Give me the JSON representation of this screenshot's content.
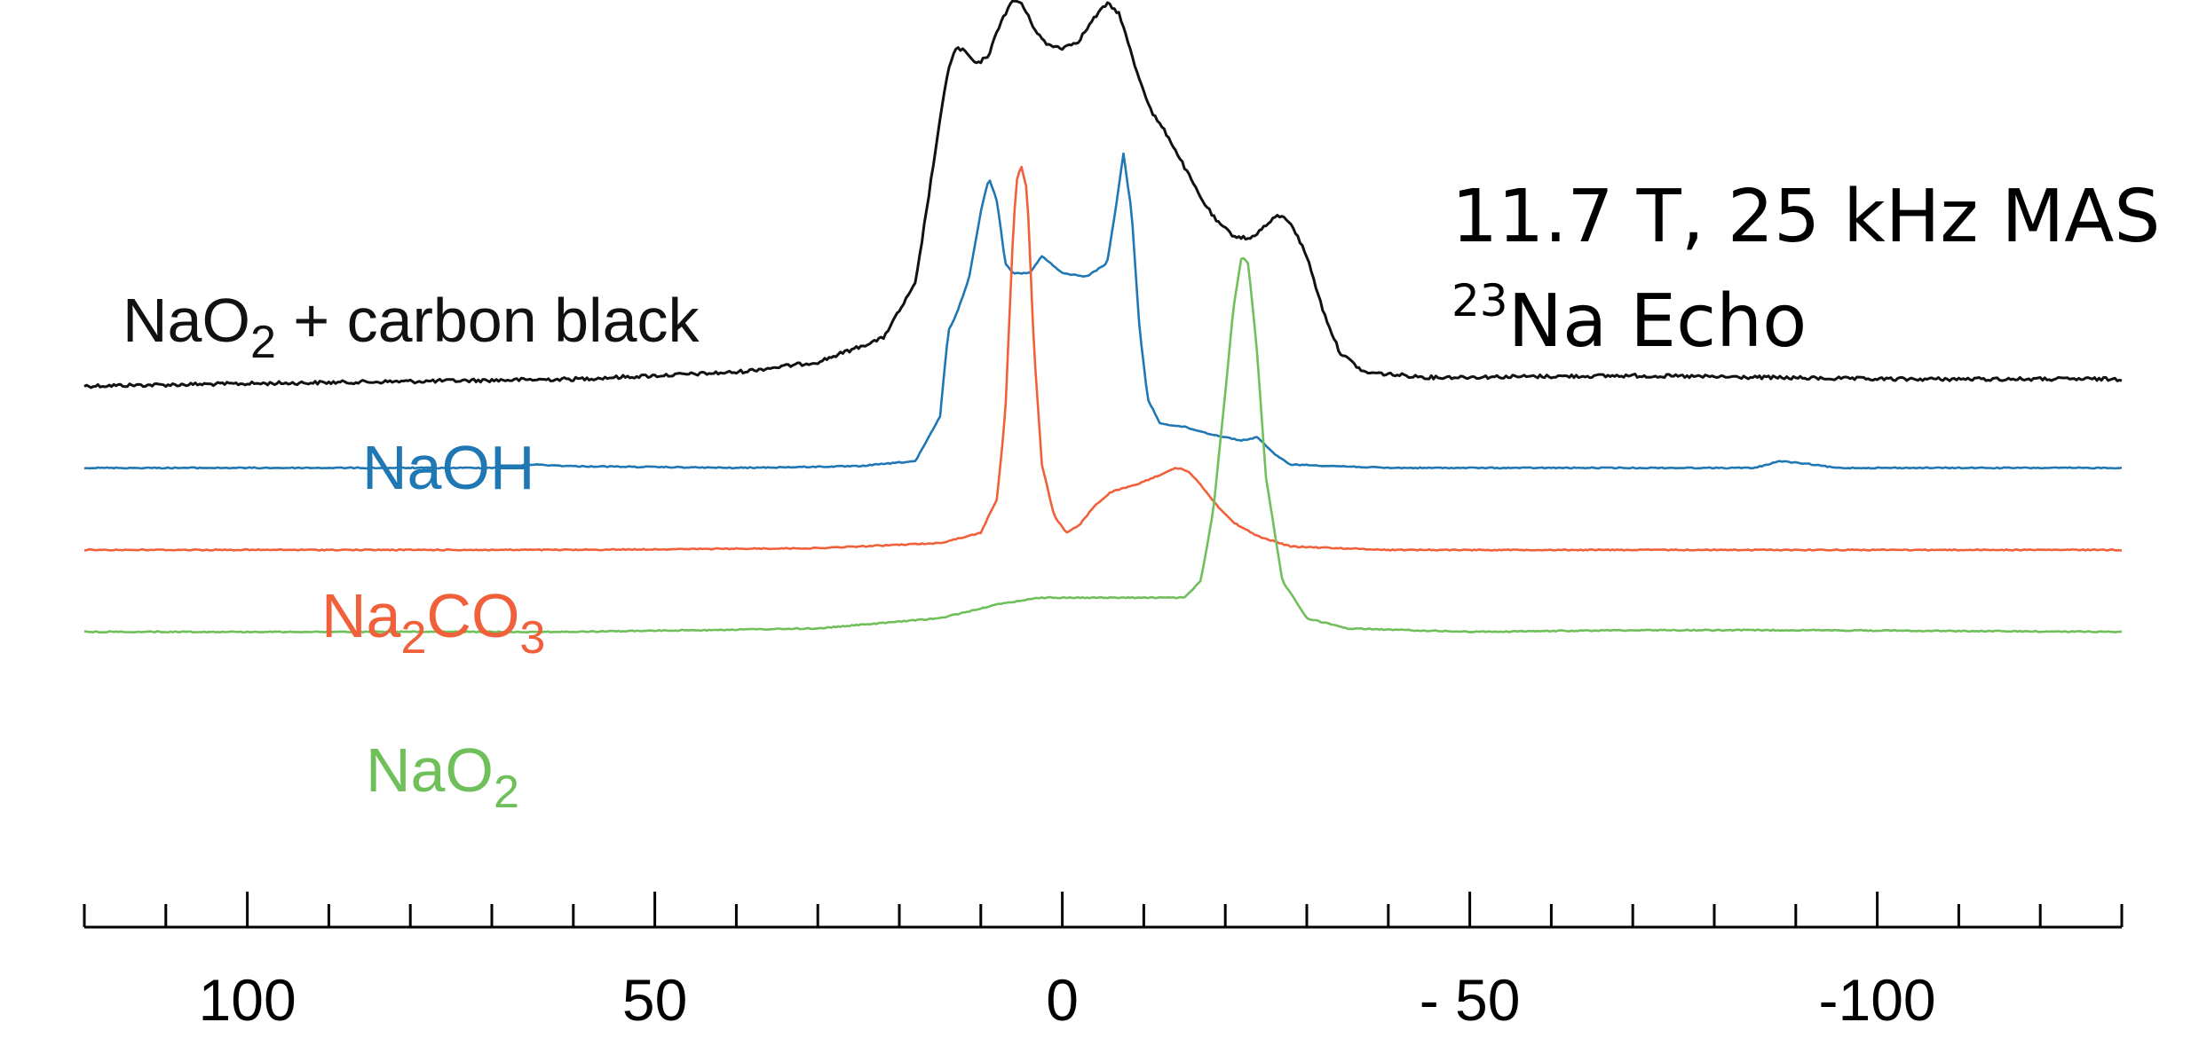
{
  "chart_data": {
    "type": "line",
    "xlim": [
      120,
      -130
    ],
    "x_axis_reversed": true,
    "tick_labels": [
      {
        "value": 100,
        "label": "100"
      },
      {
        "value": 50,
        "label": "50"
      },
      {
        "value": 0,
        "label": "0"
      },
      {
        "value": -50,
        "label": "- 50"
      },
      {
        "value": -100,
        "label": "-100"
      }
    ],
    "minor_tick_step": 10,
    "grid": false,
    "annotations": {
      "conditions": "11.7 T, 25 kHz MAS",
      "isotope_sup": "23",
      "isotope_text": "Na Echo"
    },
    "series": [
      {
        "name_parts": [
          "NaO",
          "2",
          " + carbon black"
        ],
        "color": "#111111",
        "baseline_level": 0.0,
        "points": [
          [
            120,
            0.0
          ],
          [
            90,
            0.01
          ],
          [
            60,
            0.02
          ],
          [
            40,
            0.04
          ],
          [
            30,
            0.07
          ],
          [
            22,
            0.14
          ],
          [
            18,
            0.3
          ],
          [
            15.5,
            0.7
          ],
          [
            14,
            0.93
          ],
          [
            13,
            0.99
          ],
          [
            12,
            0.98
          ],
          [
            10.5,
            0.94
          ],
          [
            9,
            0.97
          ],
          [
            7.5,
            1.07
          ],
          [
            6,
            1.13
          ],
          [
            5,
            1.12
          ],
          [
            3.5,
            1.05
          ],
          [
            2,
            1.0
          ],
          [
            0,
            0.99
          ],
          [
            -2,
            1.01
          ],
          [
            -4,
            1.08
          ],
          [
            -5.5,
            1.12
          ],
          [
            -7,
            1.09
          ],
          [
            -9,
            0.93
          ],
          [
            -11,
            0.8
          ],
          [
            -13,
            0.73
          ],
          [
            -15,
            0.64
          ],
          [
            -17,
            0.55
          ],
          [
            -19,
            0.48
          ],
          [
            -21,
            0.44
          ],
          [
            -23,
            0.43
          ],
          [
            -25,
            0.47
          ],
          [
            -26.5,
            0.5
          ],
          [
            -28,
            0.48
          ],
          [
            -30,
            0.38
          ],
          [
            -32,
            0.22
          ],
          [
            -34,
            0.1
          ],
          [
            -37,
            0.04
          ],
          [
            -45,
            0.025
          ],
          [
            -70,
            0.03
          ],
          [
            -100,
            0.02
          ],
          [
            -130,
            0.02
          ]
        ]
      },
      {
        "name": "NaOH",
        "color": "#1f77b4",
        "baseline_level": -0.55,
        "points": [
          [
            120,
            0.0
          ],
          [
            70,
            0.0
          ],
          [
            65,
            0.01
          ],
          [
            60,
            0.005
          ],
          [
            40,
            0.0
          ],
          [
            25,
            0.005
          ],
          [
            18,
            0.02
          ],
          [
            15,
            0.15
          ],
          [
            14,
            0.4
          ],
          [
            13,
            0.45
          ],
          [
            11.5,
            0.55
          ],
          [
            10,
            0.75
          ],
          [
            9,
            0.85
          ],
          [
            8,
            0.78
          ],
          [
            7,
            0.6
          ],
          [
            6,
            0.57
          ],
          [
            4,
            0.57
          ],
          [
            2.5,
            0.62
          ],
          [
            1.5,
            0.6
          ],
          [
            0,
            0.57
          ],
          [
            -3,
            0.56
          ],
          [
            -5.5,
            0.6
          ],
          [
            -6.5,
            0.75
          ],
          [
            -7.5,
            0.92
          ],
          [
            -8.5,
            0.75
          ],
          [
            -9.5,
            0.4
          ],
          [
            -10.5,
            0.2
          ],
          [
            -12,
            0.13
          ],
          [
            -15,
            0.12
          ],
          [
            -18,
            0.1
          ],
          [
            -22,
            0.08
          ],
          [
            -24,
            0.09
          ],
          [
            -26,
            0.04
          ],
          [
            -28,
            0.01
          ],
          [
            -40,
            0.0
          ],
          [
            -85,
            0.0
          ],
          [
            -88,
            0.02
          ],
          [
            -92,
            0.01
          ],
          [
            -95,
            0.0
          ],
          [
            -130,
            0.0
          ]
        ]
      },
      {
        "name_parts": [
          "Na",
          "2",
          "CO",
          "3"
        ],
        "color": "#f0603a",
        "baseline_level": -1.1,
        "points": [
          [
            120,
            0.0
          ],
          [
            60,
            0.0
          ],
          [
            30,
            0.005
          ],
          [
            15,
            0.02
          ],
          [
            10,
            0.05
          ],
          [
            8,
            0.15
          ],
          [
            7,
            0.4
          ],
          [
            6,
            0.95
          ],
          [
            5.5,
            1.1
          ],
          [
            5,
            1.12
          ],
          [
            4.3,
            1.05
          ],
          [
            3.5,
            0.6
          ],
          [
            2.5,
            0.25
          ],
          [
            1,
            0.1
          ],
          [
            -0.5,
            0.05
          ],
          [
            -2,
            0.07
          ],
          [
            -4,
            0.13
          ],
          [
            -6,
            0.17
          ],
          [
            -9,
            0.19
          ],
          [
            -12,
            0.22
          ],
          [
            -14,
            0.24
          ],
          [
            -15.5,
            0.23
          ],
          [
            -17,
            0.19
          ],
          [
            -19,
            0.13
          ],
          [
            -21,
            0.08
          ],
          [
            -24,
            0.04
          ],
          [
            -28,
            0.01
          ],
          [
            -40,
            0.0
          ],
          [
            -130,
            0.0
          ]
        ]
      },
      {
        "name_parts": [
          "NaO",
          "2"
        ],
        "color": "#6fc05a",
        "baseline_level": -1.65,
        "points": [
          [
            120,
            0.0
          ],
          [
            60,
            0.0
          ],
          [
            30,
            0.01
          ],
          [
            15,
            0.04
          ],
          [
            8,
            0.08
          ],
          [
            3,
            0.1
          ],
          [
            0,
            0.1
          ],
          [
            -6,
            0.1
          ],
          [
            -11,
            0.1
          ],
          [
            -13,
            0.1
          ],
          [
            -15,
            0.1
          ],
          [
            -17,
            0.15
          ],
          [
            -18.5,
            0.35
          ],
          [
            -20,
            0.7
          ],
          [
            -21,
            0.95
          ],
          [
            -22,
            1.1
          ],
          [
            -22.8,
            1.08
          ],
          [
            -23.8,
            0.85
          ],
          [
            -25,
            0.45
          ],
          [
            -27,
            0.15
          ],
          [
            -30,
            0.04
          ],
          [
            -35,
            0.01
          ],
          [
            -50,
            0.0
          ],
          [
            -70,
            0.005
          ],
          [
            -90,
            0.005
          ],
          [
            -130,
            0.0
          ]
        ]
      }
    ]
  }
}
